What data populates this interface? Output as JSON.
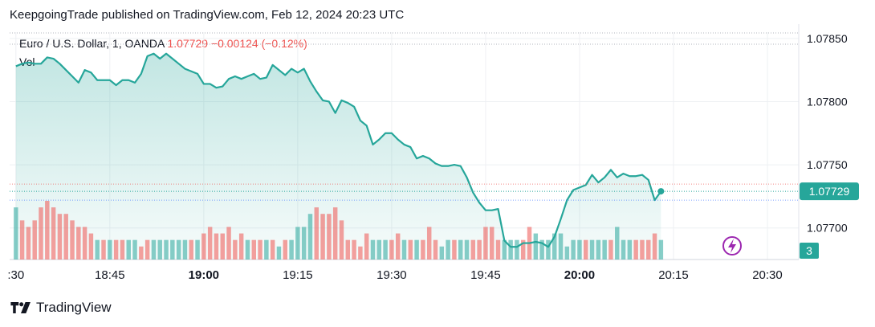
{
  "header": {
    "published_text": "KeepgoingTrade published on TradingView.com, Feb 12, 2024 20:23 UTC"
  },
  "legend": {
    "symbol": "Euro / U.S. Dollar, 1, OANDA",
    "last": "1.07729",
    "change": "−0.00124 (−0.12%)",
    "volume_label": "Vol"
  },
  "footer": {
    "brand": "TradingView",
    "logo_icon": "tradingview-logo-icon"
  },
  "colors": {
    "line": "#26a69a",
    "area_top": "#26a69a",
    "up_volume": "#26a69a",
    "down_volume": "#ef5350",
    "price_tag_bg": "#26a69a",
    "grid": "#eef0f3",
    "alert_icon": "#9c27b0"
  },
  "chart_data": {
    "type": "area",
    "title": "Euro / U.S. Dollar, 1, OANDA",
    "x_range": [
      "18:29",
      "20:35"
    ],
    "x_ticks": [
      {
        "time": "18:30",
        "label": ":30",
        "bold": false
      },
      {
        "time": "18:45",
        "label": "18:45",
        "bold": false
      },
      {
        "time": "19:00",
        "label": "19:00",
        "bold": true
      },
      {
        "time": "19:15",
        "label": "19:15",
        "bold": false
      },
      {
        "time": "19:30",
        "label": "19:30",
        "bold": false
      },
      {
        "time": "19:45",
        "label": "19:45",
        "bold": false
      },
      {
        "time": "20:00",
        "label": "20:00",
        "bold": true
      },
      {
        "time": "20:15",
        "label": "20:15",
        "bold": false
      },
      {
        "time": "20:30",
        "label": "20:30",
        "bold": false
      }
    ],
    "y_axis": {
      "min": 1.07675,
      "max": 1.07855,
      "scale": "linear",
      "ticks": [
        "1.07700",
        "1.07750",
        "1.07800",
        "1.07850"
      ]
    },
    "last_price_label": "1.07729",
    "volume_label_value": "3",
    "series": [
      {
        "start": "18:30",
        "interval_minutes": 1,
        "close": [
          1.07828,
          1.0783,
          1.07831,
          1.0783,
          1.0783,
          1.07835,
          1.07834,
          1.0783,
          1.07825,
          1.0782,
          1.07815,
          1.07825,
          1.07823,
          1.07817,
          1.07817,
          1.07817,
          1.07813,
          1.07817,
          1.07817,
          1.07815,
          1.07822,
          1.07836,
          1.07838,
          1.07834,
          1.07838,
          1.07834,
          1.0783,
          1.07826,
          1.07824,
          1.07822,
          1.07814,
          1.07814,
          1.07811,
          1.07812,
          1.07818,
          1.0782,
          1.07818,
          1.0782,
          1.07822,
          1.07818,
          1.07819,
          1.07829,
          1.07825,
          1.07821,
          1.07826,
          1.07823,
          1.07826,
          1.07816,
          1.07808,
          1.07801,
          1.078,
          1.07791,
          1.07801,
          1.07799,
          1.07796,
          1.07785,
          1.07781,
          1.07766,
          1.0777,
          1.07775,
          1.07775,
          1.0777,
          1.07766,
          1.07764,
          1.07755,
          1.07757,
          1.07755,
          1.07751,
          1.07749,
          1.07749,
          1.0775,
          1.07749,
          1.0774,
          1.07728,
          1.0772,
          1.07714,
          1.07714,
          1.07715,
          1.0769,
          1.07685,
          1.07685,
          1.07688,
          1.07688,
          1.07689,
          1.07688,
          1.07685,
          1.07693,
          1.07707,
          1.07722,
          1.0773,
          1.07732,
          1.07734,
          1.07742,
          1.07736,
          1.0774,
          1.07746,
          1.0774,
          1.07743,
          1.07741,
          1.07741,
          1.07742,
          1.07738,
          1.07722,
          1.07729
        ]
      }
    ],
    "volume": [
      {
        "v": 8,
        "up": true
      },
      {
        "v": 6,
        "up": false
      },
      {
        "v": 5,
        "up": false
      },
      {
        "v": 6,
        "up": false
      },
      {
        "v": 8,
        "up": false
      },
      {
        "v": 9,
        "up": false
      },
      {
        "v": 8,
        "up": false
      },
      {
        "v": 7,
        "up": false
      },
      {
        "v": 7,
        "up": false
      },
      {
        "v": 6,
        "up": false
      },
      {
        "v": 5,
        "up": false
      },
      {
        "v": 5,
        "up": false
      },
      {
        "v": 4,
        "up": false
      },
      {
        "v": 3,
        "up": true
      },
      {
        "v": 3,
        "up": false
      },
      {
        "v": 3,
        "up": true
      },
      {
        "v": 3,
        "up": false
      },
      {
        "v": 3,
        "up": false
      },
      {
        "v": 3,
        "up": true
      },
      {
        "v": 3,
        "up": true
      },
      {
        "v": 2,
        "up": false
      },
      {
        "v": 3,
        "up": false
      },
      {
        "v": 3,
        "up": true
      },
      {
        "v": 3,
        "up": true
      },
      {
        "v": 3,
        "up": true
      },
      {
        "v": 3,
        "up": true
      },
      {
        "v": 3,
        "up": true
      },
      {
        "v": 3,
        "up": true
      },
      {
        "v": 3,
        "up": false
      },
      {
        "v": 3,
        "up": true
      },
      {
        "v": 4,
        "up": false
      },
      {
        "v": 5,
        "up": false
      },
      {
        "v": 4,
        "up": false
      },
      {
        "v": 4,
        "up": false
      },
      {
        "v": 5,
        "up": false
      },
      {
        "v": 3,
        "up": false
      },
      {
        "v": 4,
        "up": false
      },
      {
        "v": 3,
        "up": true
      },
      {
        "v": 3,
        "up": false
      },
      {
        "v": 3,
        "up": false
      },
      {
        "v": 3,
        "up": true
      },
      {
        "v": 3,
        "up": false
      },
      {
        "v": 2,
        "up": true
      },
      {
        "v": 3,
        "up": false
      },
      {
        "v": 3,
        "up": true
      },
      {
        "v": 5,
        "up": true
      },
      {
        "v": 5,
        "up": true
      },
      {
        "v": 7,
        "up": true
      },
      {
        "v": 8,
        "up": false
      },
      {
        "v": 7,
        "up": false
      },
      {
        "v": 7,
        "up": false
      },
      {
        "v": 8,
        "up": false
      },
      {
        "v": 6,
        "up": false
      },
      {
        "v": 3,
        "up": false
      },
      {
        "v": 3,
        "up": false
      },
      {
        "v": 2,
        "up": false
      },
      {
        "v": 4,
        "up": false
      },
      {
        "v": 3,
        "up": true
      },
      {
        "v": 3,
        "up": true
      },
      {
        "v": 3,
        "up": true
      },
      {
        "v": 3,
        "up": false
      },
      {
        "v": 4,
        "up": false
      },
      {
        "v": 3,
        "up": true
      },
      {
        "v": 3,
        "up": false
      },
      {
        "v": 3,
        "up": true
      },
      {
        "v": 3,
        "up": false
      },
      {
        "v": 5,
        "up": false
      },
      {
        "v": 3,
        "up": false
      },
      {
        "v": 2,
        "up": true
      },
      {
        "v": 3,
        "up": true
      },
      {
        "v": 3,
        "up": false
      },
      {
        "v": 3,
        "up": true
      },
      {
        "v": 3,
        "up": true
      },
      {
        "v": 3,
        "up": false
      },
      {
        "v": 3,
        "up": false
      },
      {
        "v": 5,
        "up": false
      },
      {
        "v": 5,
        "up": false
      },
      {
        "v": 3,
        "up": false
      },
      {
        "v": 3,
        "up": true
      },
      {
        "v": 3,
        "up": true
      },
      {
        "v": 3,
        "up": true
      },
      {
        "v": 3,
        "up": false
      },
      {
        "v": 5,
        "up": false
      },
      {
        "v": 4,
        "up": true
      },
      {
        "v": 3,
        "up": true
      },
      {
        "v": 3,
        "up": true
      },
      {
        "v": 4,
        "up": true
      },
      {
        "v": 4,
        "up": true
      },
      {
        "v": 2,
        "up": true
      },
      {
        "v": 3,
        "up": true
      },
      {
        "v": 3,
        "up": true
      },
      {
        "v": 3,
        "up": false
      },
      {
        "v": 3,
        "up": true
      },
      {
        "v": 3,
        "up": true
      },
      {
        "v": 3,
        "up": true
      },
      {
        "v": 3,
        "up": false
      },
      {
        "v": 5,
        "up": true
      },
      {
        "v": 3,
        "up": true
      },
      {
        "v": 3,
        "up": true
      },
      {
        "v": 3,
        "up": false
      },
      {
        "v": 3,
        "up": false
      },
      {
        "v": 3,
        "up": false
      },
      {
        "v": 4,
        "up": false
      },
      {
        "v": 3,
        "up": true
      }
    ]
  }
}
